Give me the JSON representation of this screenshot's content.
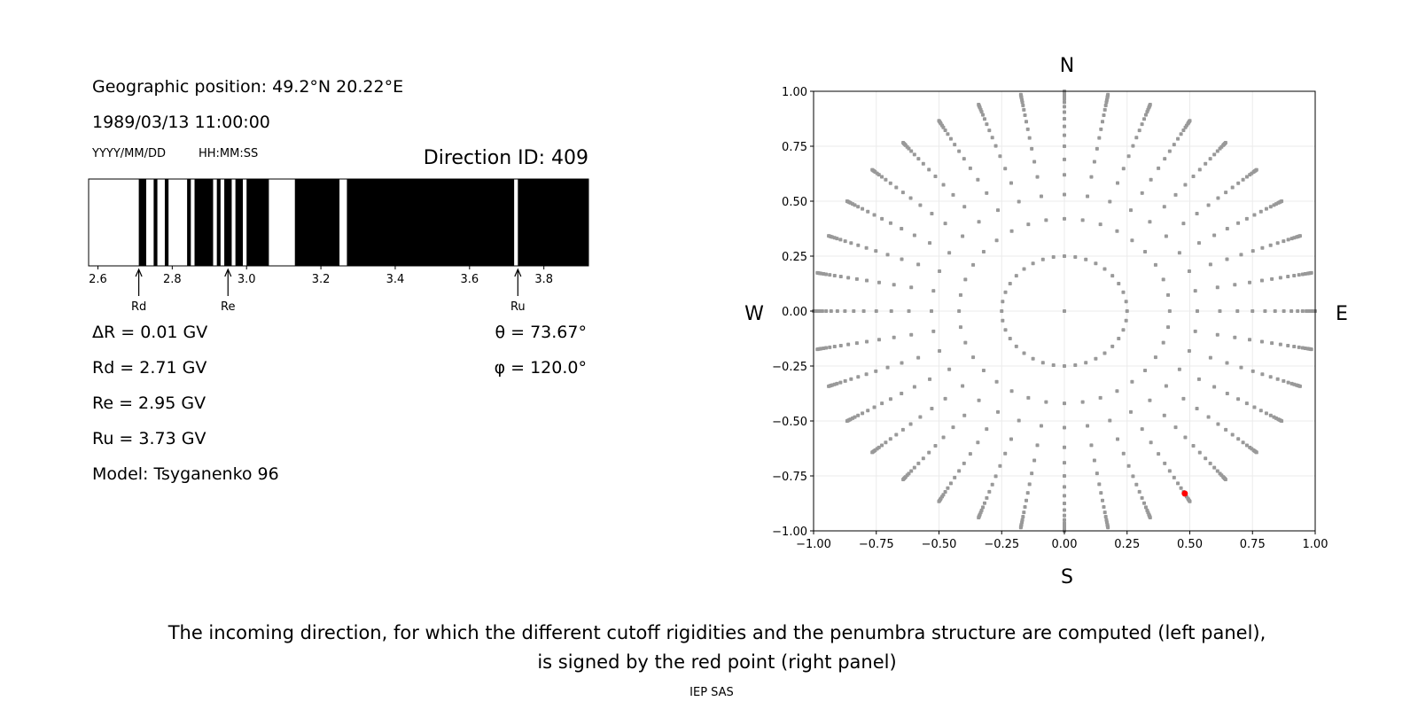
{
  "info": {
    "position": "Geographic position: 49.2°N 20.22°E",
    "datetime": "1989/03/13 11:00:00",
    "date_format": "YYYY/MM/DD",
    "time_format": "HH:MM:SS",
    "direction_id": "Direction ID: 409",
    "delta_r": "ΔR = 0.01 GV",
    "rd": "Rd = 2.71 GV",
    "re": "Re = 2.95 GV",
    "ru": "Ru = 3.73 GV",
    "model": "Model: Tsyganenko 96",
    "theta": "θ = 73.67°",
    "phi": "φ = 120.0°"
  },
  "caption": {
    "line1": "The incoming direction, for which the different cutoff rigidities and the penumbra structure are computed (left panel),",
    "line2": "is signed by the red point (right panel)",
    "credit": "IEP SAS"
  },
  "chart_data": [
    {
      "type": "bar",
      "subtype": "penumbra-strip",
      "xlim": [
        2.575,
        3.92
      ],
      "xticks": [
        2.6,
        2.8,
        3.0,
        3.2,
        3.4,
        3.6,
        3.8
      ],
      "xtick_labels": [
        "2.6",
        "2.8",
        "3.0",
        "3.2",
        "3.4",
        "3.6",
        "3.8"
      ],
      "forbidden_intervals_black": [
        [
          2.71,
          2.73
        ],
        [
          2.75,
          2.76
        ],
        [
          2.78,
          2.79
        ],
        [
          2.84,
          2.85
        ],
        [
          2.86,
          2.91
        ],
        [
          2.92,
          2.93
        ],
        [
          2.94,
          2.96
        ],
        [
          2.97,
          2.99
        ],
        [
          3.0,
          3.06
        ],
        [
          3.13,
          3.25
        ],
        [
          3.27,
          3.72
        ],
        [
          3.73,
          3.92
        ]
      ],
      "annotations": [
        {
          "label": "Rd",
          "x": 2.71
        },
        {
          "label": "Re",
          "x": 2.95
        },
        {
          "label": "Ru",
          "x": 3.73
        }
      ],
      "colors": {
        "forbidden": "#000000",
        "allowed": "#ffffff"
      }
    },
    {
      "type": "scatter",
      "xlim": [
        -1,
        1
      ],
      "ylim": [
        -1,
        1
      ],
      "xticks": [
        "−1.00",
        "−0.75",
        "−0.50",
        "−0.25",
        "0.00",
        "0.25",
        "0.50",
        "0.75",
        "1.00"
      ],
      "yticks": [
        "−1.00",
        "−0.75",
        "−0.50",
        "−0.25",
        "0.00",
        "0.25",
        "0.50",
        "0.75",
        "1.00"
      ],
      "grid": true,
      "compass": {
        "north": "N",
        "south": "S",
        "west": "W",
        "east": "E"
      },
      "grid_points": {
        "center": [
          0,
          0
        ],
        "ring_radius": 0.25,
        "azimuth_step_deg": 10,
        "spoke_radii": [
          0.42,
          0.53,
          0.62,
          0.69,
          0.75,
          0.8,
          0.84,
          0.875,
          0.905,
          0.93,
          0.95,
          0.965,
          0.975,
          0.985,
          0.99,
          0.995,
          1.0
        ],
        "color": "#999999"
      },
      "selected_point": {
        "x": 0.48,
        "y": -0.83,
        "color": "#ff0000"
      }
    }
  ]
}
